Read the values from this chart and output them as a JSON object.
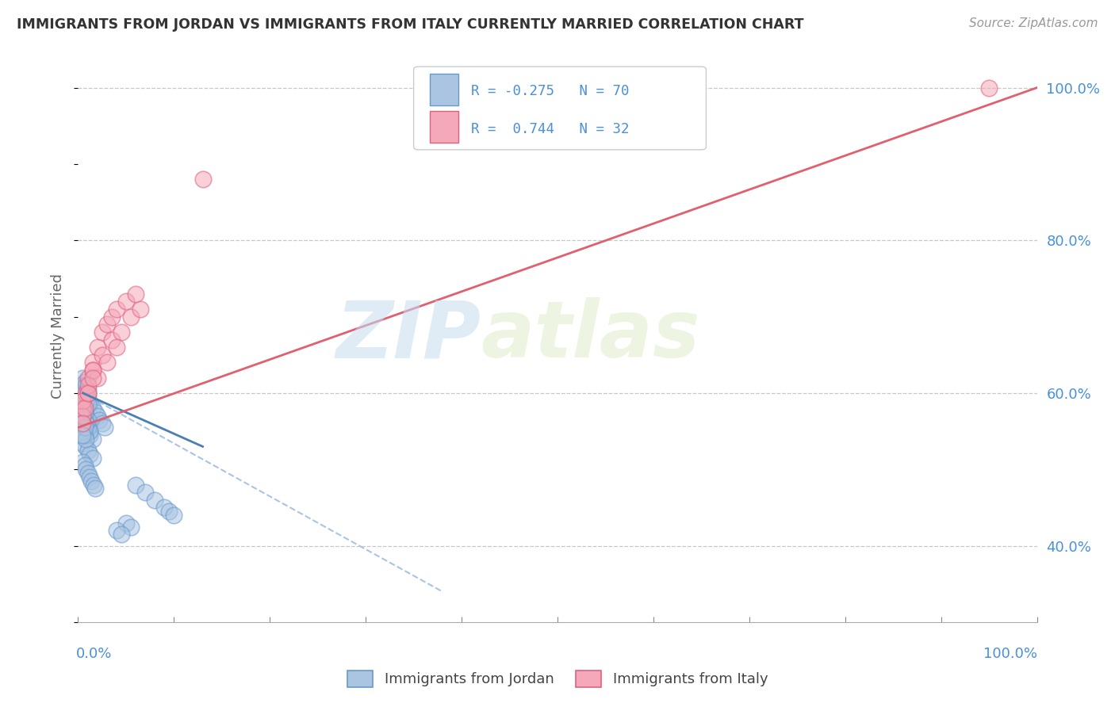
{
  "title": "IMMIGRANTS FROM JORDAN VS IMMIGRANTS FROM ITALY CURRENTLY MARRIED CORRELATION CHART",
  "source_text": "Source: ZipAtlas.com",
  "ylabel": "Currently Married",
  "xlim": [
    0.0,
    1.0
  ],
  "ylim": [
    0.3,
    1.05
  ],
  "background_color": "#ffffff",
  "grid_color": "#c8c8c8",
  "watermark_zip": "ZIP",
  "watermark_atlas": "atlas",
  "blue_color": "#aac4e2",
  "pink_color": "#f5a8b8",
  "blue_edge_color": "#6699cc",
  "pink_edge_color": "#e06080",
  "blue_line_color": "#4a7fb5",
  "pink_line_color": "#e06070",
  "dash_line_color": "#aac4e2",
  "jordan_label": "Immigrants from Jordan",
  "italy_label": "Immigrants from Italy",
  "jordan_scatter_x": [
    0.005,
    0.008,
    0.01,
    0.012,
    0.015,
    0.018,
    0.02,
    0.022,
    0.025,
    0.028,
    0.005,
    0.008,
    0.01,
    0.012,
    0.015,
    0.005,
    0.007,
    0.01,
    0.012,
    0.015,
    0.005,
    0.007,
    0.008,
    0.01,
    0.012,
    0.014,
    0.016,
    0.018,
    0.005,
    0.007,
    0.008,
    0.01,
    0.012,
    0.005,
    0.007,
    0.008,
    0.01,
    0.005,
    0.007,
    0.008,
    0.005,
    0.007,
    0.008,
    0.01,
    0.005,
    0.005,
    0.007,
    0.008,
    0.01,
    0.005,
    0.007,
    0.008,
    0.005,
    0.007,
    0.005,
    0.007,
    0.008,
    0.005,
    0.007,
    0.005,
    0.06,
    0.07,
    0.08,
    0.09,
    0.095,
    0.1,
    0.05,
    0.055,
    0.04,
    0.045
  ],
  "jordan_scatter_y": [
    0.59,
    0.6,
    0.595,
    0.585,
    0.58,
    0.575,
    0.57,
    0.565,
    0.56,
    0.555,
    0.56,
    0.555,
    0.55,
    0.545,
    0.54,
    0.535,
    0.53,
    0.525,
    0.52,
    0.515,
    0.51,
    0.505,
    0.5,
    0.495,
    0.49,
    0.485,
    0.48,
    0.475,
    0.57,
    0.565,
    0.56,
    0.555,
    0.55,
    0.58,
    0.575,
    0.57,
    0.565,
    0.59,
    0.585,
    0.58,
    0.6,
    0.595,
    0.59,
    0.585,
    0.61,
    0.62,
    0.615,
    0.61,
    0.605,
    0.57,
    0.565,
    0.56,
    0.58,
    0.575,
    0.55,
    0.545,
    0.54,
    0.56,
    0.555,
    0.545,
    0.48,
    0.47,
    0.46,
    0.45,
    0.445,
    0.44,
    0.43,
    0.425,
    0.42,
    0.415
  ],
  "italy_scatter_x": [
    0.005,
    0.01,
    0.015,
    0.02,
    0.025,
    0.03,
    0.035,
    0.04,
    0.05,
    0.06,
    0.008,
    0.015,
    0.025,
    0.035,
    0.045,
    0.055,
    0.065,
    0.005,
    0.01,
    0.02,
    0.03,
    0.04,
    0.005,
    0.01,
    0.015,
    0.005,
    0.007,
    0.01,
    0.015,
    0.005,
    0.13,
    0.95
  ],
  "italy_scatter_y": [
    0.59,
    0.62,
    0.64,
    0.66,
    0.68,
    0.69,
    0.7,
    0.71,
    0.72,
    0.73,
    0.6,
    0.63,
    0.65,
    0.67,
    0.68,
    0.7,
    0.71,
    0.58,
    0.6,
    0.62,
    0.64,
    0.66,
    0.59,
    0.61,
    0.63,
    0.57,
    0.58,
    0.6,
    0.62,
    0.56,
    0.88,
    1.0
  ],
  "jordan_trend_x": [
    0.005,
    0.13
  ],
  "jordan_trend_y": [
    0.6,
    0.53
  ],
  "italy_trend_x": [
    0.0,
    1.0
  ],
  "italy_trend_y": [
    0.555,
    1.0
  ],
  "dash_trend_x": [
    0.005,
    0.38
  ],
  "dash_trend_y": [
    0.6,
    0.34
  ],
  "yticks": [
    0.4,
    0.6,
    0.8,
    1.0
  ],
  "ytick_labels": [
    "40.0%",
    "60.0%",
    "80.0%",
    "100.0%"
  ],
  "xtick_positions": [
    0.0,
    0.1,
    0.2,
    0.3,
    0.4,
    0.5,
    0.6,
    0.7,
    0.8,
    0.9,
    1.0
  ]
}
